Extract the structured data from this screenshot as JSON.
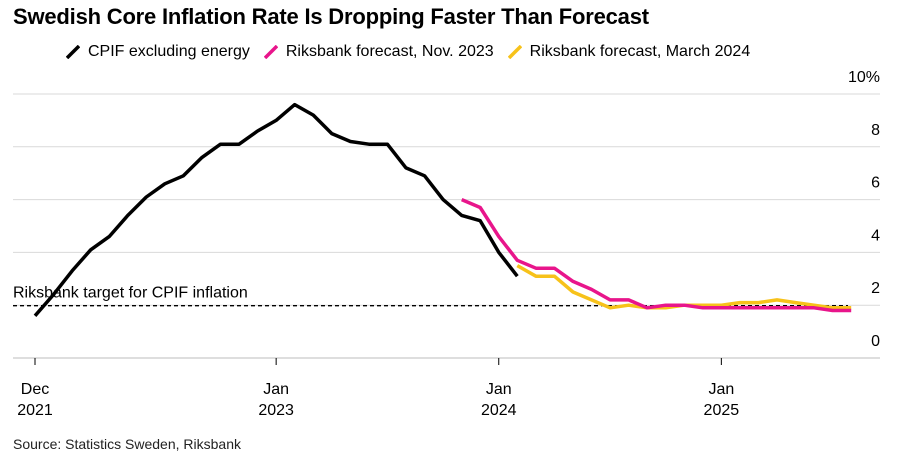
{
  "title": "Swedish Core Inflation Rate Is Dropping Faster Than Forecast",
  "source": "Source: Statistics Sweden, Riksbank",
  "legend": [
    {
      "label": "CPIF excluding energy",
      "color": "#000000"
    },
    {
      "label": "Riksbank forecast, Nov. 2023",
      "color": "#e8158b"
    },
    {
      "label": "Riksbank forecast, March 2024",
      "color": "#f7c21a"
    }
  ],
  "chart_data": {
    "type": "line",
    "title": "Swedish Core Inflation Rate Is Dropping Faster Than Forecast",
    "xlabel": "",
    "ylabel": "",
    "ylim": [
      0,
      10
    ],
    "yticks": [
      {
        "value": 0,
        "label": "0"
      },
      {
        "value": 2,
        "label": "2"
      },
      {
        "value": 4,
        "label": "4"
      },
      {
        "value": 6,
        "label": "6"
      },
      {
        "value": 8,
        "label": "8"
      },
      {
        "value": 10,
        "label": "10%"
      }
    ],
    "xlim": [
      "2021-12",
      "2025-09"
    ],
    "xticks": [
      {
        "value": "2021-12",
        "line1": "Dec",
        "line2": "2021"
      },
      {
        "value": "2023-01",
        "line1": "Jan",
        "line2": "2023"
      },
      {
        "value": "2024-01",
        "line1": "Jan",
        "line2": "2024"
      },
      {
        "value": "2025-01",
        "line1": "Jan",
        "line2": "2025"
      }
    ],
    "grid": true,
    "reference_line": {
      "value": 2,
      "label": "Riksbank target for CPIF inflation",
      "style": "dashed"
    },
    "series": [
      {
        "name": "CPIF excluding energy",
        "color": "#000000",
        "x": [
          "2021-12",
          "2022-01",
          "2022-02",
          "2022-03",
          "2022-04",
          "2022-05",
          "2022-06",
          "2022-07",
          "2022-08",
          "2022-09",
          "2022-10",
          "2022-11",
          "2022-12",
          "2023-01",
          "2023-02",
          "2023-03",
          "2023-04",
          "2023-05",
          "2023-06",
          "2023-07",
          "2023-08",
          "2023-09",
          "2023-10",
          "2023-11",
          "2023-12",
          "2024-01",
          "2024-02"
        ],
        "values": [
          1.6,
          2.4,
          3.3,
          4.1,
          4.6,
          5.4,
          6.1,
          6.6,
          6.9,
          7.6,
          8.1,
          8.1,
          8.6,
          9.0,
          9.6,
          9.2,
          8.5,
          8.2,
          8.1,
          8.1,
          7.2,
          6.9,
          6.0,
          5.4,
          5.2,
          4.0,
          3.1
        ]
      },
      {
        "name": "Riksbank forecast, Nov. 2023",
        "color": "#e8158b",
        "x": [
          "2023-11",
          "2023-12",
          "2024-01",
          "2024-02",
          "2024-03",
          "2024-04",
          "2024-05",
          "2024-06",
          "2024-07",
          "2024-08",
          "2024-09",
          "2024-10",
          "2024-11",
          "2024-12",
          "2025-01",
          "2025-02",
          "2025-03",
          "2025-04",
          "2025-05",
          "2025-06",
          "2025-07",
          "2025-08"
        ],
        "values": [
          6.0,
          5.7,
          4.6,
          3.7,
          3.4,
          3.4,
          2.9,
          2.6,
          2.2,
          2.2,
          1.9,
          2.0,
          2.0,
          1.9,
          1.9,
          1.9,
          1.9,
          1.9,
          1.9,
          1.9,
          1.8,
          1.8
        ]
      },
      {
        "name": "Riksbank forecast, March 2024",
        "color": "#f7c21a",
        "x": [
          "2024-02",
          "2024-03",
          "2024-04",
          "2024-05",
          "2024-06",
          "2024-07",
          "2024-08",
          "2024-09",
          "2024-10",
          "2024-11",
          "2024-12",
          "2025-01",
          "2025-02",
          "2025-03",
          "2025-04",
          "2025-05",
          "2025-06",
          "2025-07",
          "2025-08"
        ],
        "values": [
          3.5,
          3.1,
          3.1,
          2.5,
          2.2,
          1.9,
          2.0,
          1.9,
          1.9,
          2.0,
          2.0,
          2.0,
          2.1,
          2.1,
          2.2,
          2.1,
          2.0,
          1.9,
          1.9
        ]
      }
    ]
  }
}
